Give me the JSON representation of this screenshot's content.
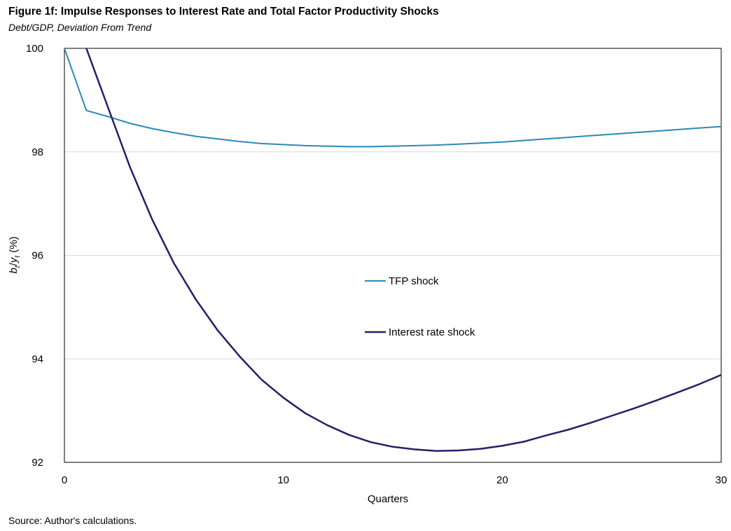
{
  "title": "Figure 1f: Impulse Responses to Interest Rate and Total Factor Productivity Shocks",
  "subtitle": "Debt/GDP, Deviation From Trend",
  "source": "Source: Author's calculations.",
  "colors": {
    "tfp": "#2a8ab5",
    "interest": "#2b1c66",
    "grid": "#d9d9d9",
    "frame": "#000000"
  },
  "chart_data": {
    "type": "line",
    "xlabel": "Quarters",
    "ylabel": "b_t/y_t (%)",
    "ylabel_parts": {
      "b": "b",
      "t1": "t",
      "slash": "/",
      "y": "y",
      "t2": "t",
      "pct": " (%)"
    },
    "xlim": [
      0,
      30
    ],
    "ylim": [
      92,
      100
    ],
    "xticks": [
      0,
      10,
      20,
      30
    ],
    "yticks": [
      92,
      94,
      96,
      98,
      100
    ],
    "grid": true,
    "legend_position": "center",
    "series": [
      {
        "name": "TFP shock",
        "x": [
          0,
          1,
          2,
          3,
          4,
          5,
          6,
          7,
          8,
          9,
          10,
          11,
          12,
          13,
          14,
          15,
          16,
          17,
          18,
          19,
          20,
          21,
          22,
          23,
          24,
          25,
          26,
          27,
          28,
          29,
          30
        ],
        "values": [
          100.0,
          98.8,
          98.68,
          98.55,
          98.45,
          98.37,
          98.3,
          98.25,
          98.2,
          98.16,
          98.14,
          98.12,
          98.11,
          98.1,
          98.1,
          98.11,
          98.12,
          98.13,
          98.15,
          98.17,
          98.19,
          98.22,
          98.25,
          98.28,
          98.31,
          98.34,
          98.37,
          98.4,
          98.43,
          98.46,
          98.49
        ]
      },
      {
        "name": "Interest rate shock",
        "x": [
          1,
          2,
          3,
          4,
          5,
          6,
          7,
          8,
          9,
          10,
          11,
          12,
          13,
          14,
          15,
          16,
          17,
          18,
          19,
          20,
          21,
          22,
          23,
          24,
          25,
          26,
          27,
          28,
          29,
          30
        ],
        "values": [
          100.0,
          98.85,
          97.7,
          96.7,
          95.85,
          95.15,
          94.55,
          94.05,
          93.6,
          93.25,
          92.95,
          92.72,
          92.53,
          92.39,
          92.3,
          92.25,
          92.22,
          92.23,
          92.26,
          92.32,
          92.4,
          92.52,
          92.63,
          92.76,
          92.9,
          93.04,
          93.19,
          93.35,
          93.51,
          93.69
        ]
      }
    ]
  }
}
